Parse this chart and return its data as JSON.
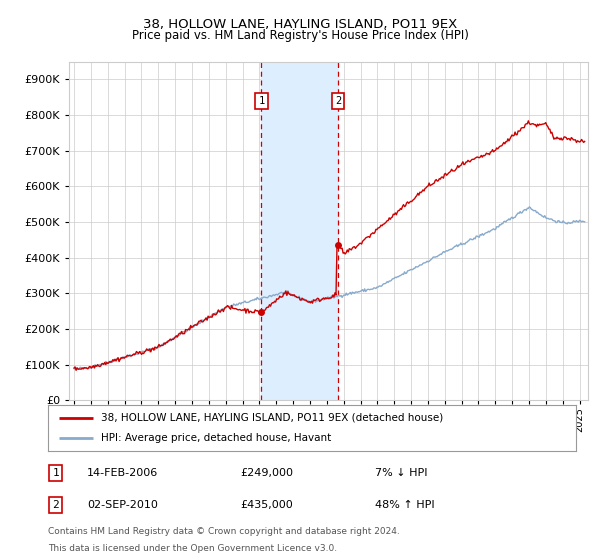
{
  "title": "38, HOLLOW LANE, HAYLING ISLAND, PO11 9EX",
  "subtitle": "Price paid vs. HM Land Registry's House Price Index (HPI)",
  "ytick_values": [
    0,
    100000,
    200000,
    300000,
    400000,
    500000,
    600000,
    700000,
    800000,
    900000
  ],
  "ylim": [
    0,
    950000
  ],
  "xlim_start": 1994.7,
  "xlim_end": 2025.5,
  "transaction1_x": 2006.12,
  "transaction1_price": 249000,
  "transaction1_label": "1",
  "transaction1_text": "14-FEB-2006",
  "transaction1_amount": "£249,000",
  "transaction1_hpi": "7% ↓ HPI",
  "transaction2_x": 2010.67,
  "transaction2_price": 435000,
  "transaction2_label": "2",
  "transaction2_text": "02-SEP-2010",
  "transaction2_amount": "£435,000",
  "transaction2_hpi": "48% ↑ HPI",
  "legend_line1": "38, HOLLOW LANE, HAYLING ISLAND, PO11 9EX (detached house)",
  "legend_line2": "HPI: Average price, detached house, Havant",
  "footnote1": "Contains HM Land Registry data © Crown copyright and database right 2024.",
  "footnote2": "This data is licensed under the Open Government Licence v3.0.",
  "line_color_red": "#cc0000",
  "line_color_blue": "#88aacc",
  "highlight_color": "#ddeeff",
  "grid_color": "#cccccc",
  "background_color": "#ffffff",
  "noise_seed": 42
}
